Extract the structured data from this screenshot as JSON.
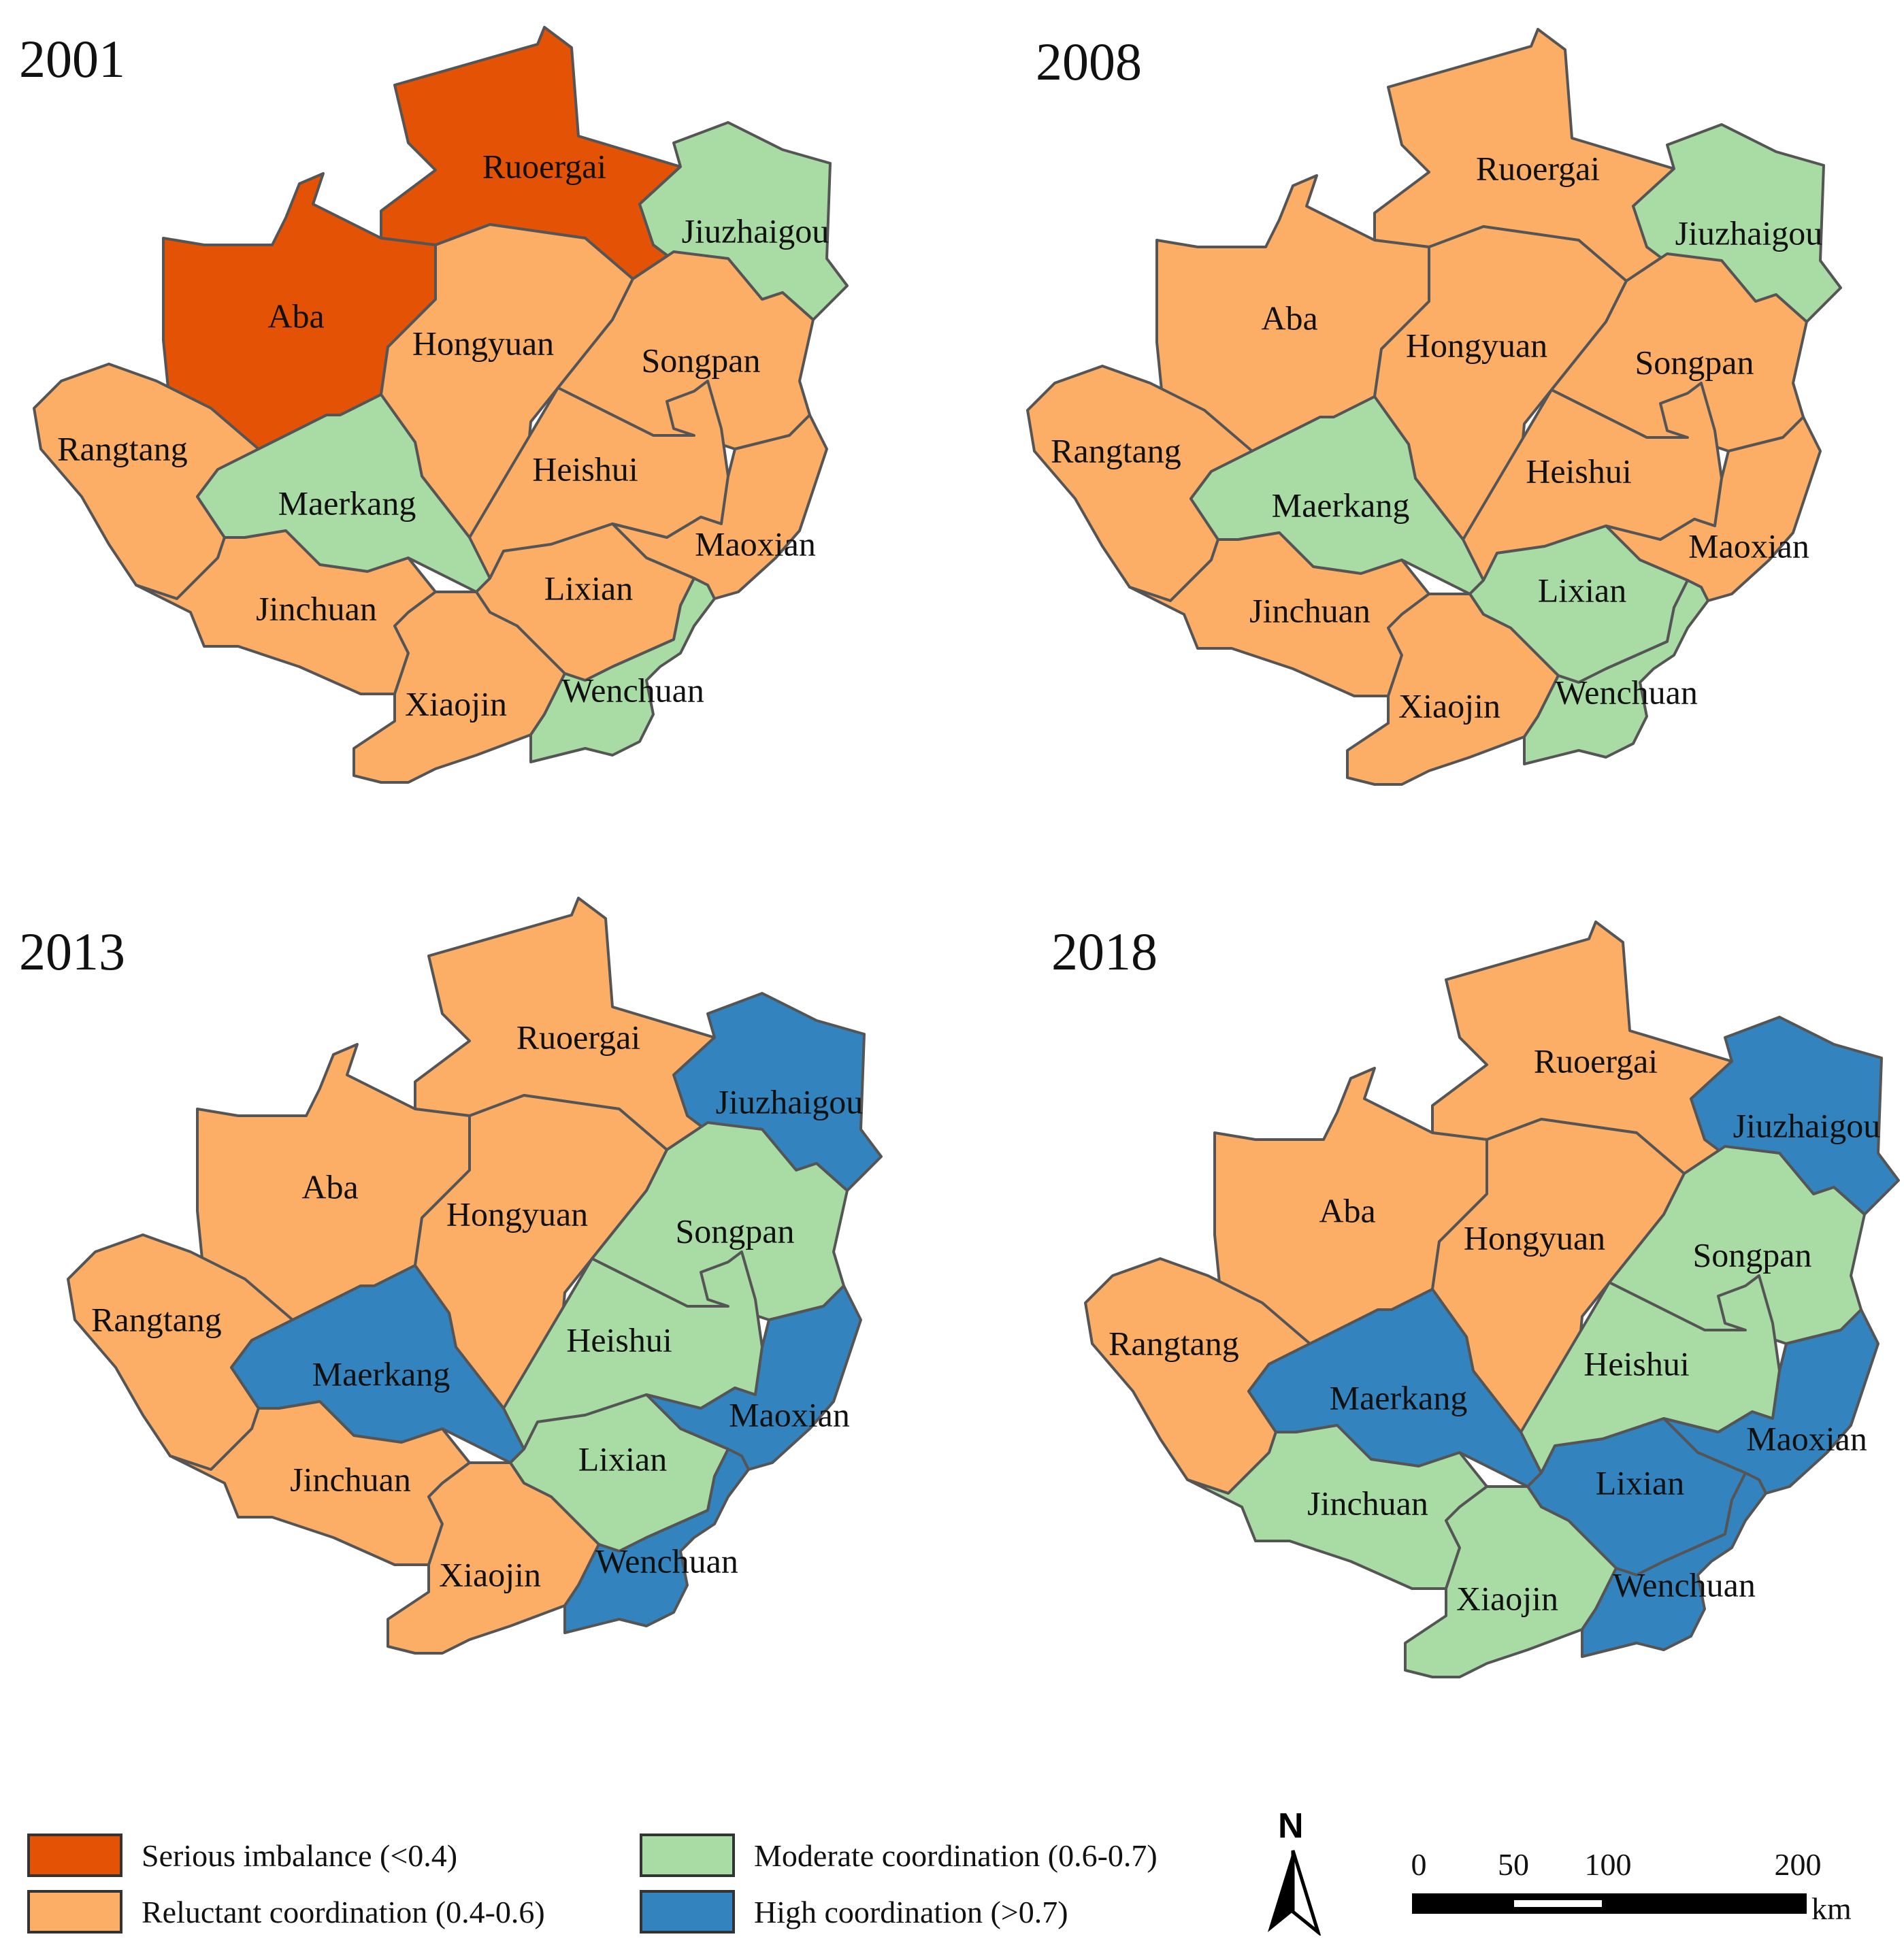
{
  "colors": {
    "serious": "#E35205",
    "reluctant": "#FCAD66",
    "moderate": "#A9DCA5",
    "high": "#3283BE",
    "border": "#555555"
  },
  "panels": [
    {
      "year": "2001",
      "classes": {
        "Ruoergai": "serious",
        "Jiuzhaigou": "moderate",
        "Aba": "serious",
        "Hongyuan": "reluctant",
        "Songpan": "reluctant",
        "Rangtang": "reluctant",
        "Maerkang": "moderate",
        "Heishui": "reluctant",
        "Maoxian": "reluctant",
        "Lixian": "reluctant",
        "Jinchuan": "reluctant",
        "Xiaojin": "reluctant",
        "Wenchuan": "moderate"
      }
    },
    {
      "year": "2008",
      "classes": {
        "Ruoergai": "reluctant",
        "Jiuzhaigou": "moderate",
        "Aba": "reluctant",
        "Hongyuan": "reluctant",
        "Songpan": "reluctant",
        "Rangtang": "reluctant",
        "Maerkang": "moderate",
        "Heishui": "reluctant",
        "Maoxian": "reluctant",
        "Lixian": "moderate",
        "Jinchuan": "reluctant",
        "Xiaojin": "reluctant",
        "Wenchuan": "moderate"
      }
    },
    {
      "year": "2013",
      "classes": {
        "Ruoergai": "reluctant",
        "Jiuzhaigou": "high",
        "Aba": "reluctant",
        "Hongyuan": "reluctant",
        "Songpan": "moderate",
        "Rangtang": "reluctant",
        "Maerkang": "high",
        "Heishui": "moderate",
        "Maoxian": "high",
        "Lixian": "moderate",
        "Jinchuan": "reluctant",
        "Xiaojin": "reluctant",
        "Wenchuan": "high"
      }
    },
    {
      "year": "2018",
      "classes": {
        "Ruoergai": "reluctant",
        "Jiuzhaigou": "high",
        "Aba": "reluctant",
        "Hongyuan": "reluctant",
        "Songpan": "moderate",
        "Rangtang": "reluctant",
        "Maerkang": "high",
        "Heishui": "moderate",
        "Maoxian": "high",
        "Lixian": "high",
        "Jinchuan": "moderate",
        "Xiaojin": "moderate",
        "Wenchuan": "high"
      }
    }
  ],
  "legend": {
    "serious": "Serious imbalance (<0.4)",
    "reluctant": "Reluctant coordination (0.4-0.6)",
    "moderate": "Moderate coordination (0.6-0.7)",
    "high": "High coordination (>0.7)"
  },
  "north": "N",
  "scale": {
    "ticks": [
      "0",
      "50",
      "100",
      "200"
    ],
    "unit": "km"
  }
}
